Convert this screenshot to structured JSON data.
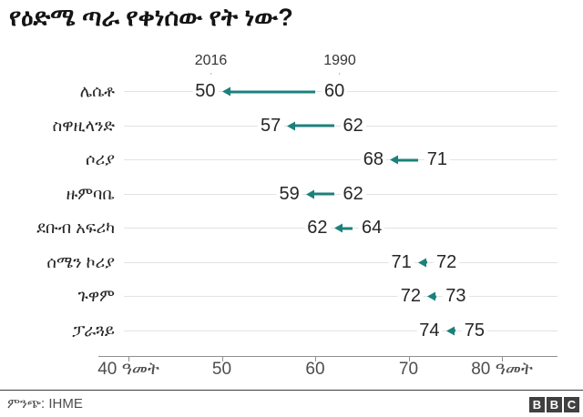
{
  "title": "የዕድሜ ጣራ የቀነሰው የት ነው?",
  "colors": {
    "accent": "#1B817B",
    "gridline": "#e3e3e3",
    "axis": "#8f8f8f",
    "text_dark": "#262626",
    "text_gray": "#4d4d4d",
    "logo_block": "#404040"
  },
  "chart_data": {
    "type": "dumbbell",
    "title": "የዕድሜ ጣራ የቀነሰው የት ነው?",
    "series_labels": [
      "2016",
      "1990"
    ],
    "categories": [
      "ሌሴቶ",
      "ስዋዚላንድ",
      "ሶሪያ",
      "ዙምባቤ",
      "ደቡብ አፍሪካ",
      "ሰሜን ኮሪያ",
      "ጉዋም",
      "ፓራጓይ"
    ],
    "series": [
      {
        "name": "2016",
        "values": [
          50,
          57,
          68,
          59,
          62,
          71,
          72,
          74
        ]
      },
      {
        "name": "1990",
        "values": [
          60,
          62,
          71,
          62,
          64,
          72,
          73,
          75
        ]
      }
    ],
    "rows": [
      {
        "label": "ሌሴቶ",
        "v2016": 50,
        "v1990": 60
      },
      {
        "label": "ስዋዚላንድ",
        "v2016": 57,
        "v1990": 62
      },
      {
        "label": "ሶሪያ",
        "v2016": 68,
        "v1990": 71
      },
      {
        "label": "ዙምባቤ",
        "v2016": 59,
        "v1990": 62
      },
      {
        "label": "ደቡብ አፍሪካ",
        "v2016": 62,
        "v1990": 64
      },
      {
        "label": "ሰሜን ኮሪያ",
        "v2016": 71,
        "v1990": 72
      },
      {
        "label": "ጉዋም",
        "v2016": 72,
        "v1990": 73
      },
      {
        "label": "ፓራጓይ",
        "v2016": 74,
        "v1990": 75
      }
    ],
    "axis": {
      "ticks": [
        {
          "value": 40,
          "label": "40 ዓመት"
        },
        {
          "value": 50,
          "label": "50"
        },
        {
          "value": 60,
          "label": "60"
        },
        {
          "value": 70,
          "label": "70"
        },
        {
          "value": 80,
          "label": "80 ዓመት"
        }
      ],
      "xlim": [
        40,
        84
      ]
    },
    "grid": true,
    "legend_position": "top",
    "arrow_direction": "left"
  },
  "footer": {
    "source": "ምንጭ: IHME",
    "logo_letters": [
      "B",
      "B",
      "C"
    ]
  }
}
